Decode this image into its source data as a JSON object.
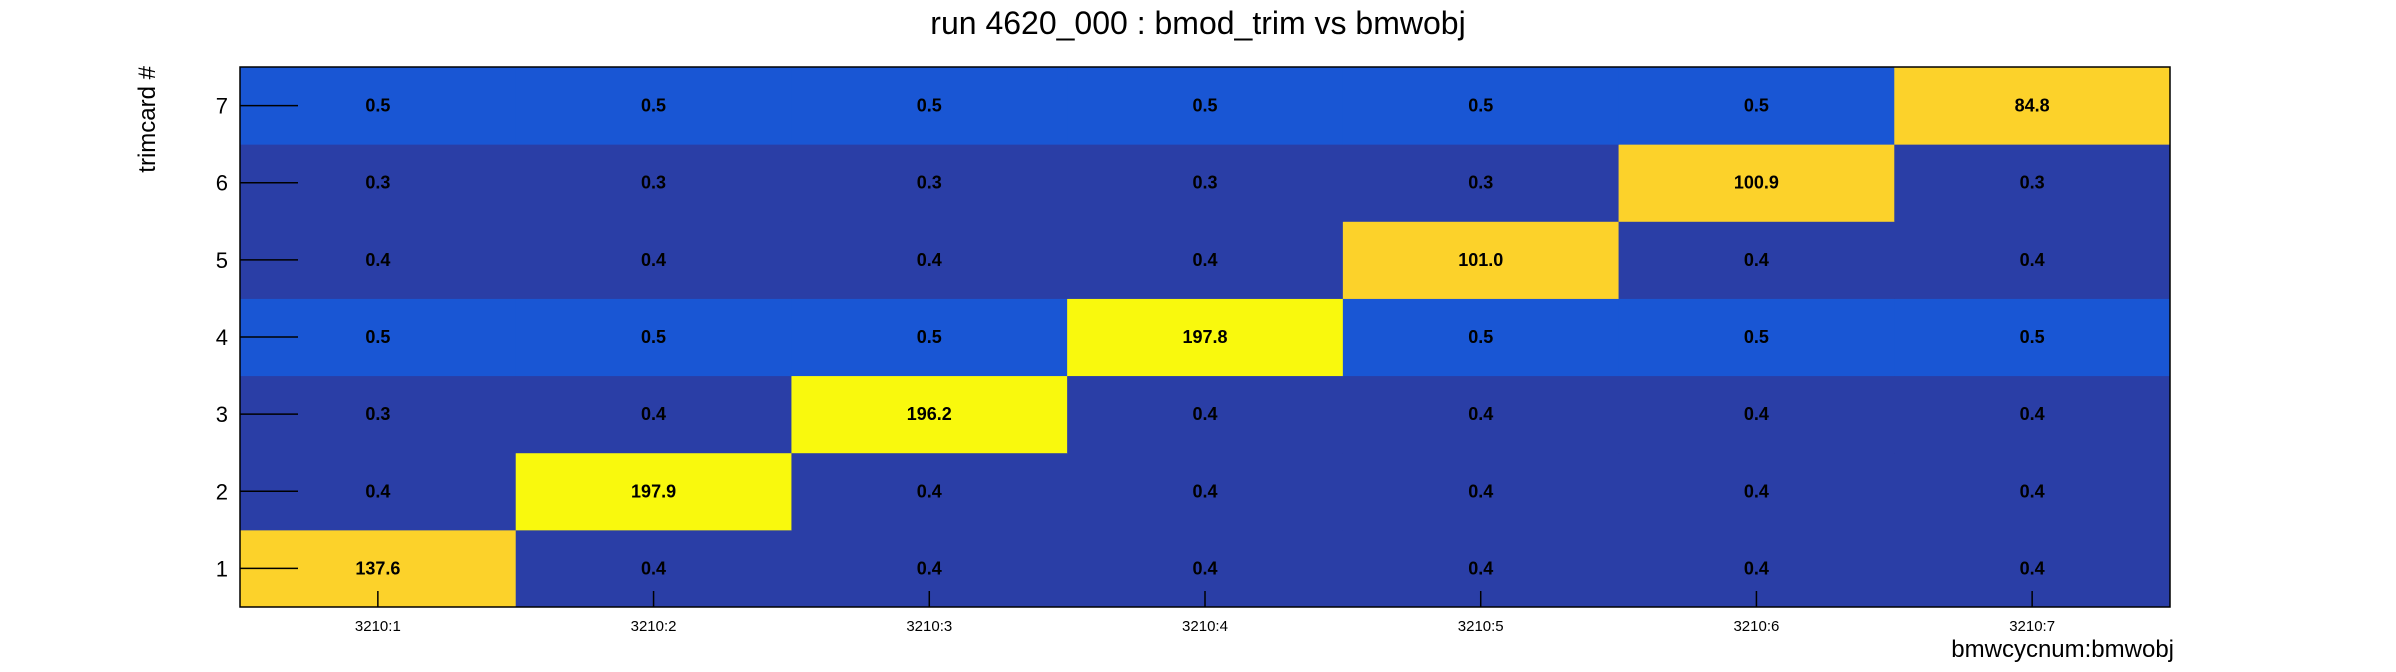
{
  "chart_data": {
    "type": "heatmap",
    "title": "run 4620_000 : bmod_trim vs bmwobj",
    "xlabel": "bmwcycnum:bmwobj",
    "ylabel": "trimcard #",
    "x_categories": [
      "3210:1",
      "3210:2",
      "3210:3",
      "3210:4",
      "3210:5",
      "3210:6",
      "3210:7"
    ],
    "y_categories": [
      "1",
      "2",
      "3",
      "4",
      "5",
      "6",
      "7"
    ],
    "values": [
      [
        137.6,
        0.4,
        0.4,
        0.4,
        0.4,
        0.4,
        0.4
      ],
      [
        0.4,
        197.9,
        0.4,
        0.4,
        0.4,
        0.4,
        0.4
      ],
      [
        0.3,
        0.4,
        196.2,
        0.4,
        0.4,
        0.4,
        0.4
      ],
      [
        0.5,
        0.5,
        0.5,
        197.8,
        0.5,
        0.5,
        0.5
      ],
      [
        0.4,
        0.4,
        0.4,
        0.4,
        101.0,
        0.4,
        0.4
      ],
      [
        0.3,
        0.3,
        0.3,
        0.3,
        0.3,
        100.9,
        0.3
      ],
      [
        0.5,
        0.5,
        0.5,
        0.5,
        0.5,
        0.5,
        84.8
      ]
    ],
    "value_labels": [
      [
        "137.6",
        "0.4",
        "0.4",
        "0.4",
        "0.4",
        "0.4",
        "0.4"
      ],
      [
        "0.4",
        "197.9",
        "0.4",
        "0.4",
        "0.4",
        "0.4",
        "0.4"
      ],
      [
        "0.3",
        "0.4",
        "196.2",
        "0.4",
        "0.4",
        "0.4",
        "0.4"
      ],
      [
        "0.5",
        "0.5",
        "0.5",
        "197.8",
        "0.5",
        "0.5",
        "0.5"
      ],
      [
        "0.4",
        "0.4",
        "0.4",
        "0.4",
        "101.0",
        "0.4",
        "0.4"
      ],
      [
        "0.3",
        "0.3",
        "0.3",
        "0.3",
        "0.3",
        "100.9",
        "0.3"
      ],
      [
        "0.5",
        "0.5",
        "0.5",
        "0.5",
        "0.5",
        "0.5",
        "84.8"
      ]
    ],
    "colors": {
      "low": "#2a3ea6",
      "low_mid": "#1956d4",
      "mid_high": "#fcd22a",
      "high": "#f9f90d",
      "frame": "#000000"
    }
  }
}
